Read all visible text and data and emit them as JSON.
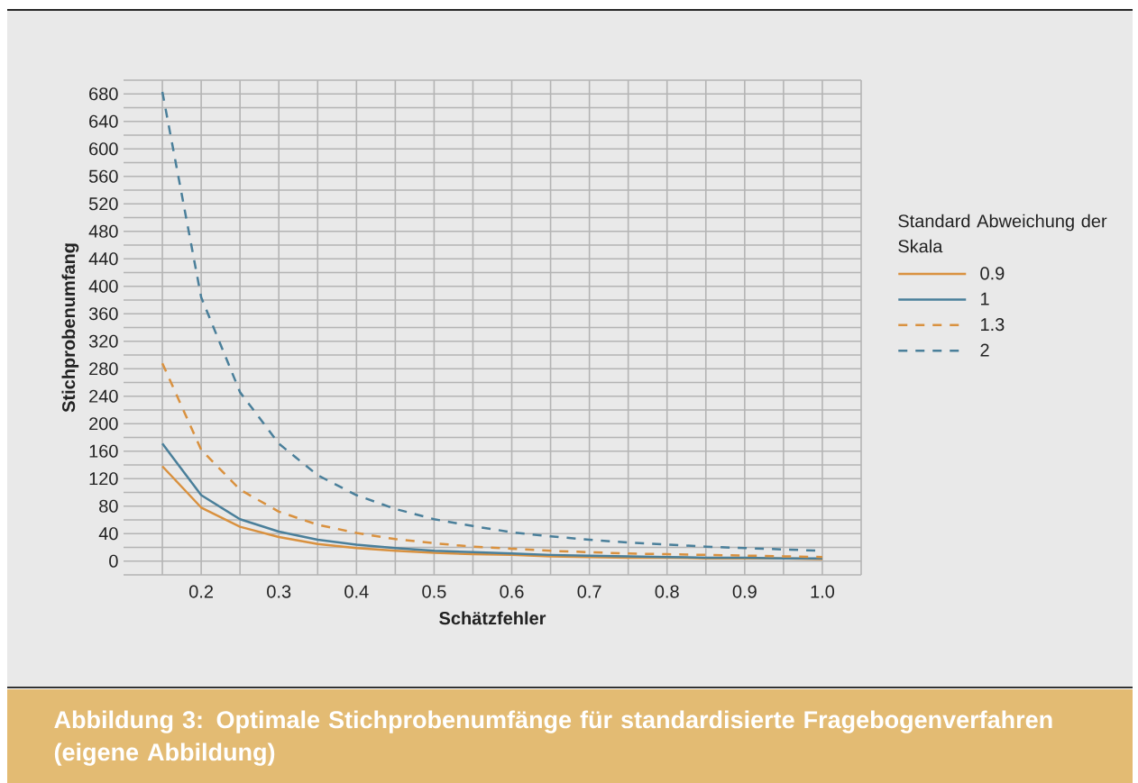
{
  "chart_data": {
    "type": "line",
    "xlabel": "Schätzfehler",
    "ylabel": "Stichprobenumfang",
    "legend_title": "Standard Abweichung der Skala",
    "x": [
      0.15,
      0.2,
      0.25,
      0.3,
      0.35,
      0.4,
      0.45,
      0.5,
      0.55,
      0.6,
      0.65,
      0.7,
      0.75,
      0.8,
      0.85,
      0.9,
      0.95,
      1.0
    ],
    "series": [
      {
        "name": "0.9",
        "color": "#d9913f",
        "line_style": "solid",
        "values": [
          138,
          78,
          50,
          35,
          25,
          19,
          15,
          12,
          10,
          9,
          7,
          6,
          5,
          5,
          4,
          4,
          4,
          3
        ]
      },
      {
        "name": "1",
        "color": "#4a7f9a",
        "line_style": "solid",
        "values": [
          171,
          96,
          61,
          43,
          31,
          24,
          19,
          15,
          13,
          11,
          9,
          8,
          7,
          6,
          5,
          5,
          4,
          4
        ]
      },
      {
        "name": "1.3",
        "color": "#d9913f",
        "line_style": "dashed",
        "values": [
          288,
          162,
          104,
          72,
          53,
          41,
          32,
          26,
          21,
          18,
          15,
          13,
          11,
          10,
          9,
          8,
          7,
          6
        ]
      },
      {
        "name": "2",
        "color": "#4a7f9a",
        "line_style": "dashed",
        "values": [
          683,
          384,
          246,
          171,
          125,
          96,
          76,
          61,
          51,
          42,
          36,
          31,
          27,
          24,
          21,
          19,
          17,
          15
        ]
      }
    ],
    "xlim": [
      0.1,
      1.05
    ],
    "ylim": [
      -20,
      700
    ],
    "xticks": [
      0.2,
      0.3,
      0.4,
      0.5,
      0.6,
      0.7,
      0.8,
      0.9,
      {
        "value": 1.0,
        "label": "1.0"
      }
    ],
    "yticks": [
      0,
      40,
      80,
      120,
      160,
      200,
      240,
      280,
      320,
      360,
      400,
      440,
      480,
      520,
      560,
      600,
      640,
      680
    ],
    "grid": true,
    "legend": "right",
    "annotations": [
      "Abbildung 3: Optimale Stichprobenumfänge für standardisierte Fragebogenverfahren (eigene Abbildung)"
    ]
  }
}
